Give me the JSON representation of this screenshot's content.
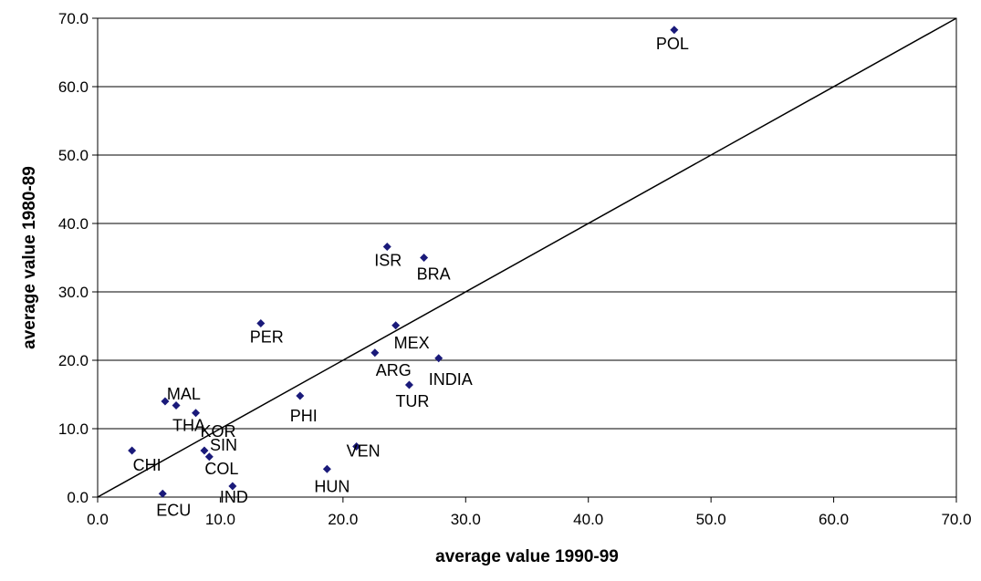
{
  "chart_data": {
    "type": "scatter",
    "title": "",
    "xlabel": "average value 1990-99",
    "ylabel": "average value 1980-89",
    "xlim": [
      0,
      70
    ],
    "ylim": [
      0,
      70
    ],
    "xticks": [
      "0.0",
      "10.0",
      "20.0",
      "30.0",
      "40.0",
      "50.0",
      "60.0",
      "70.0"
    ],
    "yticks": [
      "0.0",
      "10.0",
      "20.0",
      "30.0",
      "40.0",
      "50.0",
      "60.0",
      "70.0"
    ],
    "grid": "horizontal",
    "reference_line": "y = x",
    "marker_color": "#1a1a7a",
    "points": [
      {
        "label": "POL",
        "x": 47.0,
        "y": 68.3
      },
      {
        "label": "ISR",
        "x": 23.6,
        "y": 36.6
      },
      {
        "label": "BRA",
        "x": 26.6,
        "y": 35.0
      },
      {
        "label": "PER",
        "x": 13.3,
        "y": 25.4
      },
      {
        "label": "MEX",
        "x": 24.3,
        "y": 25.1
      },
      {
        "label": "ARG",
        "x": 22.6,
        "y": 21.1
      },
      {
        "label": "INDIA",
        "x": 27.8,
        "y": 20.3
      },
      {
        "label": "TUR",
        "x": 25.4,
        "y": 16.4
      },
      {
        "label": "PHI",
        "x": 16.5,
        "y": 14.8
      },
      {
        "label": "MAL",
        "x": 5.5,
        "y": 14.0
      },
      {
        "label": "THA",
        "x": 6.4,
        "y": 13.4
      },
      {
        "label": "KOR",
        "x": 8.0,
        "y": 12.3
      },
      {
        "label": "CHI",
        "x": 2.8,
        "y": 6.8
      },
      {
        "label": "SIN",
        "x": 8.7,
        "y": 6.8
      },
      {
        "label": "COL",
        "x": 9.1,
        "y": 5.9
      },
      {
        "label": "VEN",
        "x": 21.1,
        "y": 7.4
      },
      {
        "label": "HUN",
        "x": 18.7,
        "y": 4.1
      },
      {
        "label": "IND",
        "x": 11.0,
        "y": 1.6
      },
      {
        "label": "ECU",
        "x": 5.3,
        "y": 0.5
      }
    ]
  }
}
